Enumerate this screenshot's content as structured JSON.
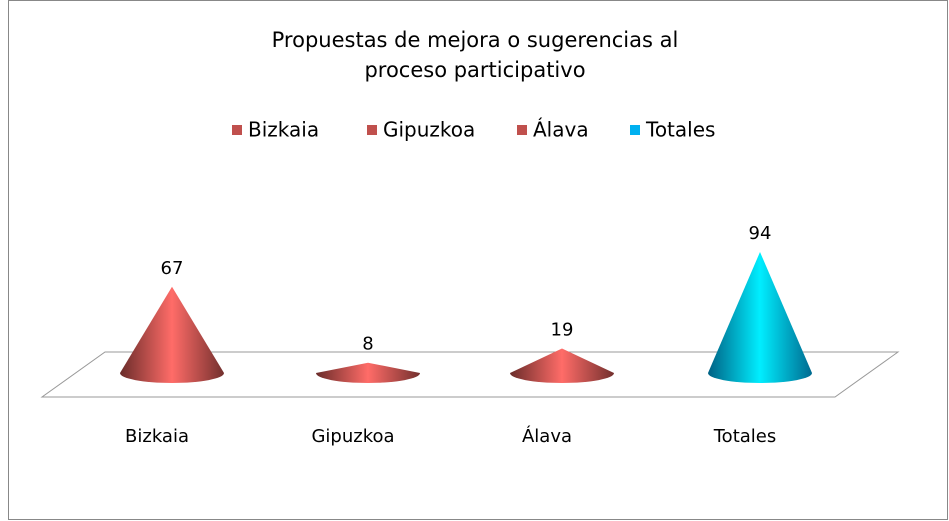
{
  "chart_data": {
    "type": "cone",
    "title": "Propuestas de mejora o sugerencias al proceso participativo",
    "categories": [
      "Bizkaia",
      "Gipuzkoa",
      "Álava",
      "Totales"
    ],
    "values": [
      67,
      8,
      19,
      94
    ],
    "colors": [
      "#c0504d",
      "#c0504d",
      "#c0504d",
      "#00b0f0"
    ],
    "legend": "top"
  }
}
